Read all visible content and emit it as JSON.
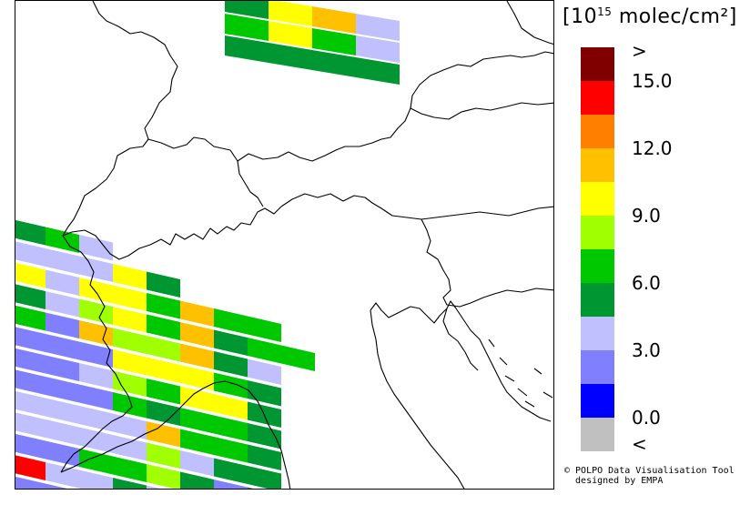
{
  "legend": {
    "title_prefix": "[10",
    "title_exponent": "15",
    "title_suffix": " molec/cm²]",
    "swatches": [
      {
        "name": "above-max",
        "color": "#800000"
      },
      {
        "name": "15",
        "color": "#ff0000"
      },
      {
        "name": "13.5",
        "color": "#ff8000"
      },
      {
        "name": "12",
        "color": "#ffc000"
      },
      {
        "name": "10.5",
        "color": "#ffff00"
      },
      {
        "name": "9",
        "color": "#a0ff00"
      },
      {
        "name": "7.5",
        "color": "#00c800"
      },
      {
        "name": "6",
        "color": "#009632"
      },
      {
        "name": "4.5",
        "color": "#c0c0ff"
      },
      {
        "name": "3",
        "color": "#8080ff"
      },
      {
        "name": "1.5",
        "color": "#0000ff"
      },
      {
        "name": "below-min",
        "color": "#c0c0c0"
      }
    ],
    "labels": [
      ">",
      "15.0",
      "12.0",
      "9.0",
      "6.0",
      "3.0",
      "0.0",
      "<"
    ]
  },
  "credit": {
    "line1": "© POLPO Data Visualisation Tool",
    "line2": "  designed by EMPA"
  }
}
